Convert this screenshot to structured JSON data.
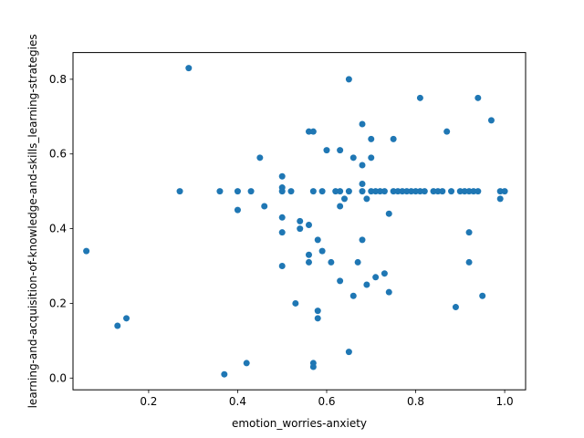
{
  "chart_data": {
    "type": "scatter",
    "xlabel": "emotion_worries-anxiety",
    "ylabel": "learning-and-acquisition-of-knowledge-and-skills_learning-strategies",
    "xlim": [
      0.03,
      1.047
    ],
    "ylim": [
      -0.0315,
      0.8715
    ],
    "x_ticks": [
      0.2,
      0.4,
      0.6,
      0.8,
      1.0
    ],
    "x_tick_labels": [
      "0.2",
      "0.4",
      "0.6",
      "0.8",
      "1.0"
    ],
    "y_ticks": [
      0.0,
      0.2,
      0.4,
      0.6,
      0.8
    ],
    "y_tick_labels": [
      "0.0",
      "0.2",
      "0.4",
      "0.6",
      "0.8"
    ],
    "grid": false,
    "marker_color": "#1f77b4",
    "points": [
      {
        "x": 0.06,
        "y": 0.34
      },
      {
        "x": 0.13,
        "y": 0.14
      },
      {
        "x": 0.15,
        "y": 0.16
      },
      {
        "x": 0.27,
        "y": 0.5
      },
      {
        "x": 0.29,
        "y": 0.83
      },
      {
        "x": 0.36,
        "y": 0.5
      },
      {
        "x": 0.37,
        "y": 0.01
      },
      {
        "x": 0.4,
        "y": 0.5
      },
      {
        "x": 0.4,
        "y": 0.45
      },
      {
        "x": 0.42,
        "y": 0.04
      },
      {
        "x": 0.43,
        "y": 0.5
      },
      {
        "x": 0.45,
        "y": 0.59
      },
      {
        "x": 0.46,
        "y": 0.46
      },
      {
        "x": 0.5,
        "y": 0.54
      },
      {
        "x": 0.5,
        "y": 0.51
      },
      {
        "x": 0.5,
        "y": 0.5
      },
      {
        "x": 0.5,
        "y": 0.43
      },
      {
        "x": 0.5,
        "y": 0.39
      },
      {
        "x": 0.5,
        "y": 0.3
      },
      {
        "x": 0.52,
        "y": 0.5
      },
      {
        "x": 0.53,
        "y": 0.2
      },
      {
        "x": 0.54,
        "y": 0.42
      },
      {
        "x": 0.54,
        "y": 0.4
      },
      {
        "x": 0.56,
        "y": 0.66
      },
      {
        "x": 0.56,
        "y": 0.41
      },
      {
        "x": 0.56,
        "y": 0.33
      },
      {
        "x": 0.56,
        "y": 0.31
      },
      {
        "x": 0.57,
        "y": 0.66
      },
      {
        "x": 0.57,
        "y": 0.5
      },
      {
        "x": 0.57,
        "y": 0.04
      },
      {
        "x": 0.57,
        "y": 0.03
      },
      {
        "x": 0.58,
        "y": 0.37
      },
      {
        "x": 0.58,
        "y": 0.18
      },
      {
        "x": 0.58,
        "y": 0.16
      },
      {
        "x": 0.59,
        "y": 0.5
      },
      {
        "x": 0.59,
        "y": 0.34
      },
      {
        "x": 0.6,
        "y": 0.61
      },
      {
        "x": 0.61,
        "y": 0.31
      },
      {
        "x": 0.62,
        "y": 0.5
      },
      {
        "x": 0.63,
        "y": 0.61
      },
      {
        "x": 0.63,
        "y": 0.5
      },
      {
        "x": 0.63,
        "y": 0.46
      },
      {
        "x": 0.63,
        "y": 0.26
      },
      {
        "x": 0.64,
        "y": 0.48
      },
      {
        "x": 0.65,
        "y": 0.8
      },
      {
        "x": 0.65,
        "y": 0.5
      },
      {
        "x": 0.65,
        "y": 0.07
      },
      {
        "x": 0.66,
        "y": 0.59
      },
      {
        "x": 0.66,
        "y": 0.22
      },
      {
        "x": 0.67,
        "y": 0.31
      },
      {
        "x": 0.68,
        "y": 0.68
      },
      {
        "x": 0.68,
        "y": 0.57
      },
      {
        "x": 0.68,
        "y": 0.52
      },
      {
        "x": 0.68,
        "y": 0.5
      },
      {
        "x": 0.68,
        "y": 0.37
      },
      {
        "x": 0.69,
        "y": 0.48
      },
      {
        "x": 0.69,
        "y": 0.25
      },
      {
        "x": 0.7,
        "y": 0.64
      },
      {
        "x": 0.7,
        "y": 0.59
      },
      {
        "x": 0.7,
        "y": 0.5
      },
      {
        "x": 0.71,
        "y": 0.5
      },
      {
        "x": 0.71,
        "y": 0.27
      },
      {
        "x": 0.72,
        "y": 0.5
      },
      {
        "x": 0.73,
        "y": 0.5
      },
      {
        "x": 0.73,
        "y": 0.28
      },
      {
        "x": 0.74,
        "y": 0.44
      },
      {
        "x": 0.74,
        "y": 0.23
      },
      {
        "x": 0.75,
        "y": 0.64
      },
      {
        "x": 0.75,
        "y": 0.5
      },
      {
        "x": 0.76,
        "y": 0.5
      },
      {
        "x": 0.77,
        "y": 0.5
      },
      {
        "x": 0.78,
        "y": 0.5
      },
      {
        "x": 0.79,
        "y": 0.5
      },
      {
        "x": 0.8,
        "y": 0.5
      },
      {
        "x": 0.81,
        "y": 0.75
      },
      {
        "x": 0.81,
        "y": 0.5
      },
      {
        "x": 0.82,
        "y": 0.5
      },
      {
        "x": 0.84,
        "y": 0.5
      },
      {
        "x": 0.85,
        "y": 0.5
      },
      {
        "x": 0.86,
        "y": 0.5
      },
      {
        "x": 0.87,
        "y": 0.66
      },
      {
        "x": 0.88,
        "y": 0.5
      },
      {
        "x": 0.89,
        "y": 0.19
      },
      {
        "x": 0.9,
        "y": 0.5
      },
      {
        "x": 0.91,
        "y": 0.5
      },
      {
        "x": 0.92,
        "y": 0.5
      },
      {
        "x": 0.92,
        "y": 0.39
      },
      {
        "x": 0.92,
        "y": 0.31
      },
      {
        "x": 0.93,
        "y": 0.5
      },
      {
        "x": 0.94,
        "y": 0.75
      },
      {
        "x": 0.94,
        "y": 0.5
      },
      {
        "x": 0.95,
        "y": 0.22
      },
      {
        "x": 0.97,
        "y": 0.69
      },
      {
        "x": 0.99,
        "y": 0.5
      },
      {
        "x": 0.99,
        "y": 0.48
      },
      {
        "x": 1.0,
        "y": 0.5
      }
    ]
  }
}
